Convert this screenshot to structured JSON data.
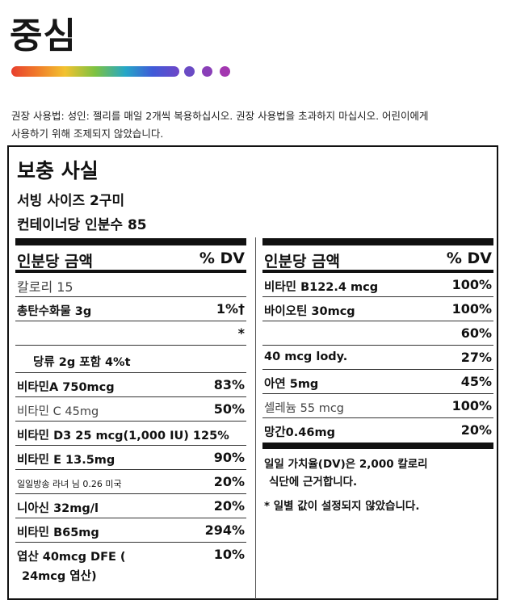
{
  "brand": "중심",
  "colors": {
    "dot1": "#6a4bc4",
    "dot2": "#8a3fb8",
    "dot3": "#a337b0"
  },
  "usage_line1": "권장 사용법: 성인: 젤리를 매일 2개씩 복용하십시오. 권장 사용법을 초과하지 마십시오. 어린이에게",
  "usage_line2": "사용하기 위해 조제되지 않았습니다.",
  "panel": {
    "title": "보충 사실",
    "serving": "서빙 사이즈 2구미",
    "servings_per": "컨테이너당 인분수 85",
    "left_header": {
      "label": "인분당 금액",
      "dv": "% DV"
    },
    "right_header": {
      "label": "인분당 금액",
      "dv": "% DV"
    },
    "left_rows": [
      {
        "name": "칼로리 15",
        "dv": ""
      },
      {
        "name": "총탄수화물 3g",
        "dv": "1%†"
      },
      {
        "name": "",
        "dv": "*"
      },
      {
        "name": "당류 2g 포함 4%t",
        "dv": ""
      },
      {
        "name": "비타민A 750mcg",
        "dv": "83%"
      },
      {
        "name": "비타민 C 45mg",
        "dv": "50%"
      },
      {
        "name": "비타민 D3 25 mcg(1,000 IU) 125%",
        "dv": ""
      },
      {
        "name": "비타민 E 13.5mg",
        "dv": "90%"
      },
      {
        "name": "일일방송 라녀 님 0.26 미국",
        "dv": "20%"
      },
      {
        "name": "니아신 32mg/l",
        "dv": "20%"
      },
      {
        "name": "비타민 B65mg",
        "dv": "294%"
      },
      {
        "name": "엽산 40mcg DFE (",
        "name2": "24mcg 엽산)",
        "dv": "10%"
      }
    ],
    "right_rows": [
      {
        "name": "비타민 B122.4 mcg",
        "dv": "100%"
      },
      {
        "name": "바이오틴 30mcg",
        "dv": "100%"
      },
      {
        "name": "",
        "dv": "60%"
      },
      {
        "name": "40 mcg lody.",
        "dv": "27%"
      },
      {
        "name": "아연 5mg",
        "dv": "45%"
      },
      {
        "name": "셀레늄 55 mcg",
        "dv": "100%"
      },
      {
        "name": "망간0.46mg",
        "dv": "20%"
      }
    ],
    "foot1a": "일일 가치율(DV)은 2,000 칼로리",
    "foot1b": "식단에 근거합니다.",
    "foot2": "* 일별 값이 설정되지 않았습니다."
  }
}
